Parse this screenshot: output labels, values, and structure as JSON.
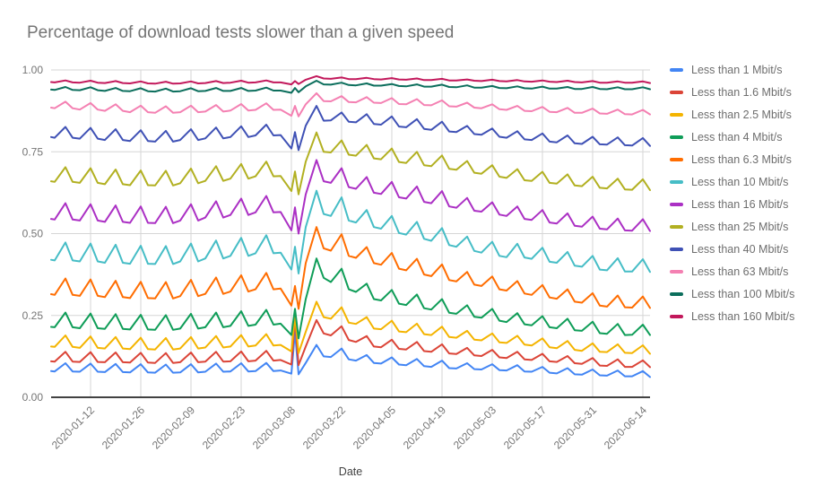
{
  "chart_data": {
    "type": "line",
    "title": "Percentage of download tests slower than a given speed",
    "xlabel": "Date",
    "ylabel": "",
    "ylim": [
      0,
      1
    ],
    "grid": true,
    "legend_position": "right",
    "x_unit": "days since 2020-01-01",
    "y_ticks": [
      {
        "value": 0.0,
        "label": "0.00"
      },
      {
        "value": 0.25,
        "label": "0.25"
      },
      {
        "value": 0.5,
        "label": "0.50"
      },
      {
        "value": 0.75,
        "label": "0.75"
      },
      {
        "value": 1.0,
        "label": "1.00"
      }
    ],
    "x_ticks": [
      {
        "day": 11,
        "label": "2020-01-12"
      },
      {
        "day": 25,
        "label": "2020-01-26"
      },
      {
        "day": 39,
        "label": "2020-02-09"
      },
      {
        "day": 53,
        "label": "2020-02-23"
      },
      {
        "day": 67,
        "label": "2020-03-08"
      },
      {
        "day": 81,
        "label": "2020-03-22"
      },
      {
        "day": 95,
        "label": "2020-04-05"
      },
      {
        "day": 109,
        "label": "2020-04-19"
      },
      {
        "day": 123,
        "label": "2020-05-03"
      },
      {
        "day": 137,
        "label": "2020-05-17"
      },
      {
        "day": 151,
        "label": "2020-05-31"
      },
      {
        "day": 165,
        "label": "2020-06-14"
      }
    ],
    "x_days": [
      0,
      1,
      4,
      6,
      8,
      11,
      13,
      15,
      18,
      20,
      22,
      25,
      27,
      29,
      32,
      34,
      36,
      39,
      41,
      43,
      46,
      48,
      50,
      53,
      55,
      57,
      60,
      62,
      64,
      67,
      68,
      69,
      71,
      74,
      76,
      78,
      81,
      83,
      85,
      88,
      90,
      92,
      95,
      97,
      99,
      102,
      104,
      106,
      109,
      111,
      113,
      116,
      118,
      120,
      123,
      125,
      127,
      130,
      132,
      134,
      137,
      139,
      141,
      144,
      146,
      148,
      151,
      153,
      155,
      158,
      160,
      162,
      165,
      167
    ],
    "series": [
      {
        "name": "Less than 1 Mbit/s",
        "color": "#4285F4",
        "values": [
          0.08,
          0.079,
          0.104,
          0.079,
          0.078,
          0.103,
          0.078,
          0.077,
          0.102,
          0.077,
          0.076,
          0.101,
          0.076,
          0.075,
          0.1,
          0.075,
          0.076,
          0.101,
          0.076,
          0.078,
          0.103,
          0.078,
          0.079,
          0.104,
          0.079,
          0.08,
          0.105,
          0.08,
          0.082,
          0.072,
          0.2,
          0.07,
          0.105,
          0.16,
          0.125,
          0.123,
          0.149,
          0.116,
          0.112,
          0.129,
          0.105,
          0.103,
          0.122,
          0.1,
          0.098,
          0.117,
          0.095,
          0.093,
          0.112,
          0.089,
          0.088,
          0.104,
          0.086,
          0.085,
          0.101,
          0.083,
          0.082,
          0.098,
          0.079,
          0.078,
          0.093,
          0.075,
          0.073,
          0.089,
          0.07,
          0.069,
          0.085,
          0.067,
          0.066,
          0.082,
          0.064,
          0.064,
          0.08,
          0.062
        ]
      },
      {
        "name": "Less than 1.6 Mbit/s",
        "color": "#DB4437",
        "values": [
          0.11,
          0.109,
          0.139,
          0.109,
          0.108,
          0.138,
          0.108,
          0.107,
          0.137,
          0.107,
          0.106,
          0.136,
          0.106,
          0.105,
          0.135,
          0.105,
          0.107,
          0.137,
          0.107,
          0.109,
          0.139,
          0.109,
          0.11,
          0.14,
          0.11,
          0.112,
          0.142,
          0.112,
          0.114,
          0.1,
          0.24,
          0.098,
          0.155,
          0.236,
          0.195,
          0.189,
          0.217,
          0.175,
          0.169,
          0.187,
          0.155,
          0.153,
          0.176,
          0.148,
          0.146,
          0.169,
          0.141,
          0.139,
          0.162,
          0.134,
          0.132,
          0.151,
          0.128,
          0.126,
          0.145,
          0.122,
          0.12,
          0.139,
          0.116,
          0.114,
          0.133,
          0.11,
          0.108,
          0.126,
          0.104,
          0.102,
          0.12,
          0.097,
          0.096,
          0.116,
          0.093,
          0.093,
          0.113,
          0.092
        ]
      },
      {
        "name": "Less than 2.5 Mbit/s",
        "color": "#F4B400",
        "values": [
          0.155,
          0.154,
          0.189,
          0.154,
          0.151,
          0.186,
          0.151,
          0.149,
          0.184,
          0.149,
          0.147,
          0.182,
          0.147,
          0.146,
          0.181,
          0.146,
          0.149,
          0.184,
          0.149,
          0.152,
          0.187,
          0.152,
          0.155,
          0.19,
          0.155,
          0.158,
          0.193,
          0.158,
          0.16,
          0.14,
          0.25,
          0.135,
          0.2,
          0.292,
          0.245,
          0.24,
          0.275,
          0.228,
          0.224,
          0.245,
          0.21,
          0.208,
          0.234,
          0.201,
          0.199,
          0.225,
          0.193,
          0.19,
          0.216,
          0.184,
          0.182,
          0.203,
          0.176,
          0.174,
          0.195,
          0.168,
          0.166,
          0.188,
          0.161,
          0.158,
          0.18,
          0.153,
          0.15,
          0.172,
          0.145,
          0.142,
          0.165,
          0.139,
          0.138,
          0.162,
          0.136,
          0.135,
          0.159,
          0.133
        ]
      },
      {
        "name": "Less than 4 Mbit/s",
        "color": "#0F9D58",
        "values": [
          0.215,
          0.214,
          0.259,
          0.214,
          0.211,
          0.256,
          0.211,
          0.209,
          0.254,
          0.209,
          0.207,
          0.252,
          0.207,
          0.206,
          0.251,
          0.206,
          0.21,
          0.255,
          0.21,
          0.214,
          0.259,
          0.214,
          0.218,
          0.263,
          0.218,
          0.222,
          0.267,
          0.222,
          0.225,
          0.19,
          0.27,
          0.18,
          0.3,
          0.424,
          0.365,
          0.352,
          0.393,
          0.33,
          0.322,
          0.347,
          0.3,
          0.296,
          0.328,
          0.286,
          0.282,
          0.314,
          0.272,
          0.268,
          0.3,
          0.258,
          0.255,
          0.281,
          0.246,
          0.243,
          0.27,
          0.234,
          0.23,
          0.257,
          0.223,
          0.22,
          0.248,
          0.214,
          0.211,
          0.24,
          0.205,
          0.203,
          0.231,
          0.196,
          0.194,
          0.224,
          0.19,
          0.191,
          0.222,
          0.19
        ]
      },
      {
        "name": "Less than 6.3 Mbit/s",
        "color": "#FF6D01",
        "values": [
          0.315,
          0.313,
          0.363,
          0.313,
          0.31,
          0.36,
          0.31,
          0.306,
          0.356,
          0.306,
          0.303,
          0.353,
          0.303,
          0.302,
          0.352,
          0.302,
          0.309,
          0.359,
          0.309,
          0.316,
          0.366,
          0.316,
          0.323,
          0.373,
          0.323,
          0.33,
          0.38,
          0.33,
          0.332,
          0.28,
          0.34,
          0.27,
          0.41,
          0.52,
          0.455,
          0.448,
          0.498,
          0.432,
          0.426,
          0.459,
          0.41,
          0.405,
          0.441,
          0.393,
          0.388,
          0.423,
          0.375,
          0.37,
          0.406,
          0.358,
          0.354,
          0.383,
          0.344,
          0.34,
          0.369,
          0.33,
          0.326,
          0.355,
          0.317,
          0.313,
          0.343,
          0.305,
          0.301,
          0.33,
          0.292,
          0.289,
          0.318,
          0.28,
          0.277,
          0.311,
          0.275,
          0.274,
          0.308,
          0.273
        ]
      },
      {
        "name": "Less than 10 Mbit/s",
        "color": "#46BDC6",
        "values": [
          0.42,
          0.418,
          0.473,
          0.418,
          0.415,
          0.47,
          0.415,
          0.411,
          0.466,
          0.411,
          0.408,
          0.463,
          0.408,
          0.407,
          0.462,
          0.407,
          0.415,
          0.47,
          0.415,
          0.424,
          0.479,
          0.424,
          0.432,
          0.487,
          0.432,
          0.44,
          0.495,
          0.44,
          0.442,
          0.39,
          0.46,
          0.378,
          0.52,
          0.631,
          0.56,
          0.554,
          0.611,
          0.54,
          0.534,
          0.572,
          0.52,
          0.515,
          0.554,
          0.502,
          0.497,
          0.536,
          0.484,
          0.478,
          0.517,
          0.465,
          0.46,
          0.491,
          0.447,
          0.442,
          0.475,
          0.432,
          0.428,
          0.469,
          0.427,
          0.423,
          0.457,
          0.414,
          0.411,
          0.444,
          0.402,
          0.399,
          0.432,
          0.39,
          0.388,
          0.425,
          0.384,
          0.384,
          0.422,
          0.383
        ]
      },
      {
        "name": "Less than 16 Mbit/s",
        "color": "#AB30C4",
        "values": [
          0.545,
          0.543,
          0.593,
          0.543,
          0.54,
          0.59,
          0.54,
          0.536,
          0.586,
          0.536,
          0.533,
          0.583,
          0.533,
          0.532,
          0.582,
          0.532,
          0.54,
          0.59,
          0.54,
          0.549,
          0.599,
          0.549,
          0.557,
          0.607,
          0.557,
          0.565,
          0.615,
          0.565,
          0.566,
          0.51,
          0.58,
          0.5,
          0.62,
          0.725,
          0.66,
          0.655,
          0.7,
          0.642,
          0.637,
          0.673,
          0.625,
          0.621,
          0.658,
          0.611,
          0.607,
          0.644,
          0.597,
          0.593,
          0.63,
          0.583,
          0.579,
          0.609,
          0.57,
          0.567,
          0.596,
          0.558,
          0.554,
          0.583,
          0.545,
          0.542,
          0.572,
          0.534,
          0.531,
          0.562,
          0.524,
          0.521,
          0.552,
          0.515,
          0.513,
          0.546,
          0.51,
          0.509,
          0.544,
          0.508
        ]
      },
      {
        "name": "Less than 25 Mbit/s",
        "color": "#B2B021",
        "values": [
          0.66,
          0.658,
          0.703,
          0.658,
          0.655,
          0.7,
          0.655,
          0.651,
          0.696,
          0.651,
          0.648,
          0.693,
          0.648,
          0.647,
          0.692,
          0.647,
          0.654,
          0.699,
          0.654,
          0.661,
          0.706,
          0.661,
          0.668,
          0.713,
          0.668,
          0.675,
          0.72,
          0.675,
          0.676,
          0.63,
          0.69,
          0.62,
          0.72,
          0.809,
          0.75,
          0.748,
          0.785,
          0.741,
          0.738,
          0.771,
          0.73,
          0.727,
          0.76,
          0.719,
          0.716,
          0.75,
          0.709,
          0.706,
          0.739,
          0.698,
          0.695,
          0.722,
          0.686,
          0.683,
          0.709,
          0.674,
          0.67,
          0.697,
          0.663,
          0.661,
          0.689,
          0.655,
          0.653,
          0.681,
          0.647,
          0.645,
          0.674,
          0.64,
          0.638,
          0.668,
          0.635,
          0.634,
          0.666,
          0.633
        ]
      },
      {
        "name": "Less than 40 Mbit/s",
        "color": "#3F51B5",
        "values": [
          0.795,
          0.793,
          0.826,
          0.793,
          0.79,
          0.823,
          0.79,
          0.786,
          0.819,
          0.786,
          0.783,
          0.816,
          0.783,
          0.781,
          0.814,
          0.781,
          0.786,
          0.819,
          0.786,
          0.791,
          0.824,
          0.791,
          0.795,
          0.828,
          0.795,
          0.8,
          0.833,
          0.8,
          0.801,
          0.76,
          0.81,
          0.755,
          0.83,
          0.89,
          0.845,
          0.846,
          0.87,
          0.842,
          0.84,
          0.865,
          0.835,
          0.833,
          0.858,
          0.827,
          0.825,
          0.85,
          0.82,
          0.817,
          0.842,
          0.812,
          0.81,
          0.829,
          0.804,
          0.802,
          0.821,
          0.796,
          0.793,
          0.813,
          0.788,
          0.786,
          0.806,
          0.781,
          0.779,
          0.8,
          0.776,
          0.774,
          0.796,
          0.773,
          0.772,
          0.794,
          0.77,
          0.769,
          0.792,
          0.768
        ]
      },
      {
        "name": "Less than 63 Mbit/s",
        "color": "#F480B2",
        "values": [
          0.885,
          0.883,
          0.903,
          0.883,
          0.879,
          0.899,
          0.879,
          0.875,
          0.895,
          0.875,
          0.871,
          0.891,
          0.871,
          0.869,
          0.889,
          0.869,
          0.871,
          0.891,
          0.871,
          0.873,
          0.893,
          0.873,
          0.876,
          0.896,
          0.876,
          0.878,
          0.898,
          0.878,
          0.879,
          0.86,
          0.89,
          0.858,
          0.895,
          0.929,
          0.905,
          0.904,
          0.92,
          0.902,
          0.901,
          0.917,
          0.9,
          0.899,
          0.914,
          0.896,
          0.895,
          0.911,
          0.893,
          0.892,
          0.907,
          0.889,
          0.888,
          0.9,
          0.885,
          0.883,
          0.895,
          0.88,
          0.878,
          0.89,
          0.875,
          0.874,
          0.887,
          0.872,
          0.871,
          0.884,
          0.869,
          0.869,
          0.882,
          0.867,
          0.866,
          0.879,
          0.865,
          0.864,
          0.878,
          0.864
        ]
      },
      {
        "name": "Less than 100 Mbit/s",
        "color": "#0B6E5C",
        "values": [
          0.94,
          0.939,
          0.948,
          0.939,
          0.938,
          0.947,
          0.938,
          0.936,
          0.945,
          0.936,
          0.935,
          0.944,
          0.935,
          0.934,
          0.943,
          0.934,
          0.935,
          0.944,
          0.935,
          0.936,
          0.945,
          0.936,
          0.936,
          0.945,
          0.936,
          0.937,
          0.946,
          0.937,
          0.937,
          0.93,
          0.945,
          0.932,
          0.95,
          0.967,
          0.956,
          0.955,
          0.961,
          0.954,
          0.953,
          0.959,
          0.952,
          0.952,
          0.957,
          0.951,
          0.95,
          0.956,
          0.949,
          0.949,
          0.955,
          0.948,
          0.947,
          0.953,
          0.946,
          0.946,
          0.951,
          0.945,
          0.944,
          0.95,
          0.944,
          0.943,
          0.949,
          0.943,
          0.943,
          0.948,
          0.942,
          0.942,
          0.948,
          0.942,
          0.941,
          0.947,
          0.941,
          0.941,
          0.947,
          0.941
        ]
      },
      {
        "name": "Less than 160 Mbit/s",
        "color": "#C2185B",
        "values": [
          0.963,
          0.962,
          0.968,
          0.962,
          0.961,
          0.967,
          0.961,
          0.96,
          0.966,
          0.96,
          0.959,
          0.965,
          0.959,
          0.958,
          0.964,
          0.958,
          0.959,
          0.965,
          0.959,
          0.96,
          0.966,
          0.96,
          0.961,
          0.967,
          0.961,
          0.962,
          0.968,
          0.962,
          0.962,
          0.956,
          0.966,
          0.957,
          0.97,
          0.981,
          0.974,
          0.973,
          0.977,
          0.972,
          0.972,
          0.976,
          0.972,
          0.971,
          0.975,
          0.971,
          0.97,
          0.974,
          0.969,
          0.969,
          0.973,
          0.968,
          0.968,
          0.971,
          0.967,
          0.966,
          0.97,
          0.966,
          0.965,
          0.969,
          0.965,
          0.964,
          0.968,
          0.964,
          0.963,
          0.967,
          0.963,
          0.962,
          0.966,
          0.961,
          0.961,
          0.965,
          0.961,
          0.961,
          0.965,
          0.96
        ]
      }
    ]
  }
}
